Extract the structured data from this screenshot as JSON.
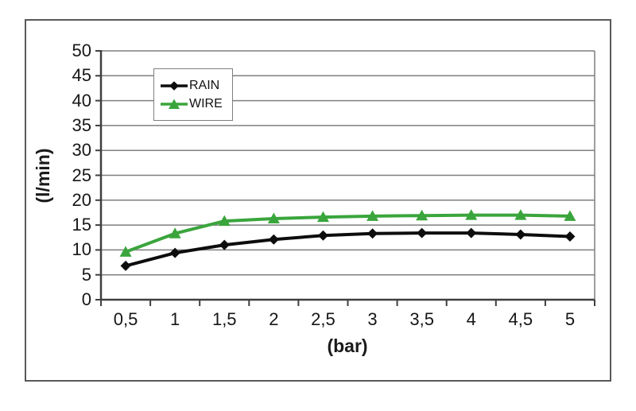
{
  "figure": {
    "background": "#ffffff",
    "frame_border_color": "#58595b"
  },
  "chart_data": {
    "type": "line",
    "categories": [
      "0,5",
      "1",
      "1,5",
      "2",
      "2,5",
      "3",
      "3,5",
      "4",
      "4,5",
      "5"
    ],
    "series": [
      {
        "name": "RAIN",
        "color": "#0d0d0d",
        "marker": "diamond",
        "values": [
          6.8,
          9.4,
          11.0,
          12.1,
          12.9,
          13.3,
          13.4,
          13.4,
          13.1,
          12.7
        ]
      },
      {
        "name": "WIRE",
        "color": "#3aa53c",
        "marker": "triangle",
        "values": [
          9.6,
          13.3,
          15.8,
          16.3,
          16.6,
          16.8,
          16.9,
          17.0,
          17.0,
          16.8
        ]
      }
    ],
    "title": "",
    "xlabel": "(bar)",
    "ylabel": "(l/min)",
    "ylim": [
      0,
      50
    ],
    "ytick_step": 5,
    "y_tick_labels": [
      "0",
      "5",
      "10",
      "15",
      "20",
      "25",
      "30",
      "35",
      "40",
      "45",
      "50"
    ],
    "grid": "horizontal",
    "gridline_color": "#7f7f7f",
    "axis_color": "#3f3f3f",
    "tick_label_color": "#161616",
    "legend_position": "inside-top-left",
    "line_width": 4
  }
}
